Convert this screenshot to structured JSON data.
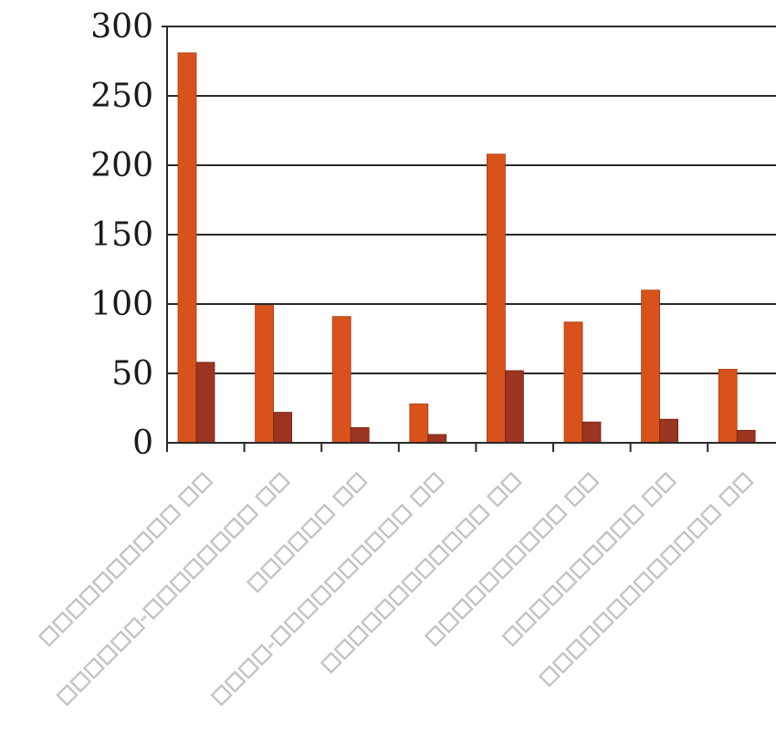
{
  "chart_data": {
    "type": "bar",
    "title": "",
    "xlabel": "",
    "ylabel": "",
    "ylim": [
      0,
      300
    ],
    "yticks": [
      0,
      50,
      100,
      150,
      200,
      250,
      300
    ],
    "grid": true,
    "categories": [
      "□□□□□□□□□□ □□",
      "□□□□□□-□□□□□□□□ □□",
      "□□□□□□ □□",
      "□□□□-□□□□□□□□□□ □□",
      "□□□□□□□□□□□□ □□",
      "□□□□□□□□□□ □□",
      "□□□□□□□□□□ □□",
      "□□□□□□□□□□□□□ □□"
    ],
    "series": [
      {
        "color": "#d9521c",
        "values": [
          281,
          99,
          91,
          28,
          208,
          87,
          110,
          53
        ]
      },
      {
        "color": "#9c3422",
        "values": [
          58,
          22,
          11,
          6,
          52,
          15,
          17,
          9
        ]
      }
    ]
  }
}
